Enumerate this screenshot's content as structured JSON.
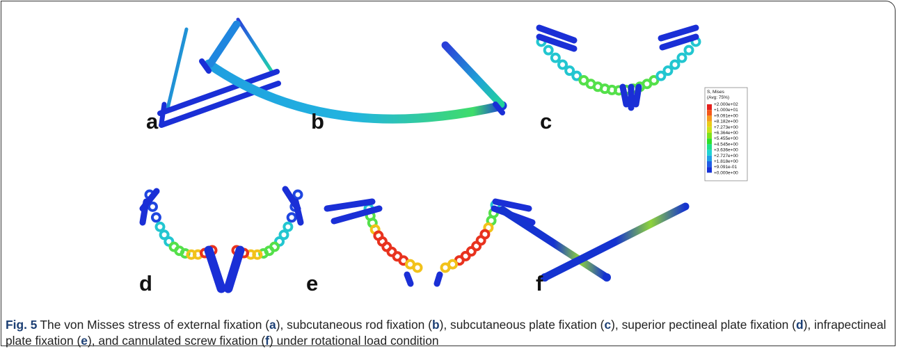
{
  "panels": [
    {
      "label": "a"
    },
    {
      "label": "b"
    },
    {
      "label": "c"
    },
    {
      "label": "d"
    },
    {
      "label": "e"
    },
    {
      "label": "f"
    }
  ],
  "legend": {
    "title": "S, Mises",
    "subtitle": "(Avg: 75%)",
    "levels": [
      "+2.000e+02",
      "+1.000e+01",
      "+9.091e+00",
      "+8.182e+00",
      "+7.273e+00",
      "+6.364e+00",
      "+5.455e+00",
      "+4.545e+00",
      "+3.636e+00",
      "+2.727e+00",
      "+1.818e+00",
      "+9.091e-01",
      "+0.000e+00"
    ]
  },
  "caption": {
    "label": "Fig. 5",
    "runs": [
      "The von Misses stress of external fixation (",
      "a",
      "), subcutaneous rod fixation (",
      "b",
      "), subcutaneous plate fixation (",
      "c",
      "), superior pectineal plate fixation (",
      "d",
      "), infrapectineal plate fixation (",
      "e",
      "), and cannulated screw fixation (",
      "f",
      ") under rotational load condition"
    ]
  }
}
